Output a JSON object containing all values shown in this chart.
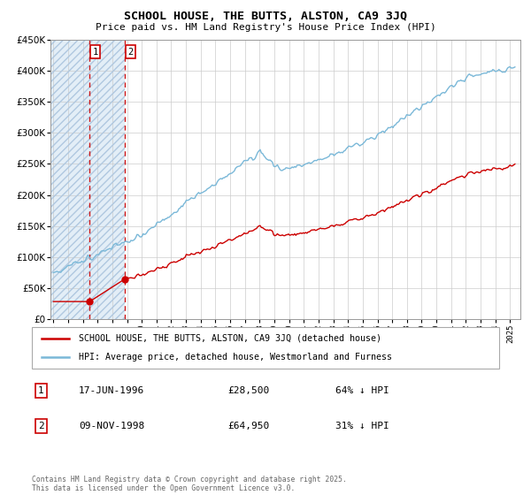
{
  "title": "SCHOOL HOUSE, THE BUTTS, ALSTON, CA9 3JQ",
  "subtitle": "Price paid vs. HM Land Registry's House Price Index (HPI)",
  "legend_line1": "SCHOOL HOUSE, THE BUTTS, ALSTON, CA9 3JQ (detached house)",
  "legend_line2": "HPI: Average price, detached house, Westmorland and Furness",
  "sale1_date": "17-JUN-1996",
  "sale1_price": 28500,
  "sale1_hpi": "64% ↓ HPI",
  "sale2_date": "09-NOV-1998",
  "sale2_price": 64950,
  "sale2_hpi": "31% ↓ HPI",
  "footnote": "Contains HM Land Registry data © Crown copyright and database right 2025.\nThis data is licensed under the Open Government Licence v3.0.",
  "hpi_color": "#7ab8d8",
  "price_color": "#cc0000",
  "sale1_year": 1996.46,
  "sale2_year": 1998.86,
  "ylim_max": 450000,
  "xlim_start": 1993.8,
  "xlim_end": 2025.7,
  "bg_color": "#f0f4fa"
}
